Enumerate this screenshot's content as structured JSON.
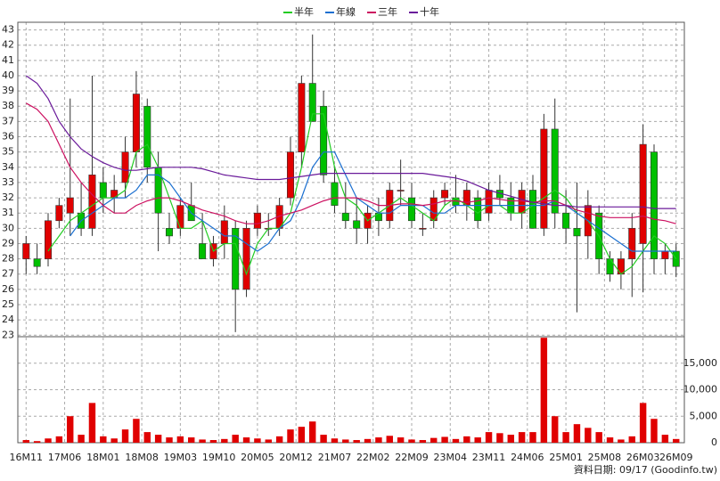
{
  "chart_data": {
    "type": "candlestick",
    "x": [
      0,
      2,
      4,
      6,
      8,
      10,
      12,
      14,
      16,
      18,
      20,
      22,
      24,
      26,
      28,
      30,
      32,
      34,
      36,
      38,
      40,
      42,
      44,
      46,
      48,
      50,
      52,
      54,
      56,
      58,
      60,
      62,
      64,
      66,
      68,
      70,
      72,
      74,
      76,
      78,
      80,
      82,
      84,
      86,
      88,
      90,
      92,
      94,
      96,
      98,
      100,
      102,
      104,
      106,
      108,
      110,
      112,
      114,
      116,
      118
    ],
    "open": [
      28,
      28,
      28,
      30.5,
      31,
      31,
      30,
      33,
      32,
      33,
      35,
      38,
      34,
      30,
      30,
      31.5,
      29,
      28,
      29,
      30,
      26,
      30,
      30,
      30,
      32,
      35,
      39.5,
      38,
      33,
      31,
      30.5,
      30,
      31,
      30.5,
      32.5,
      32,
      30,
      30.5,
      32,
      32,
      31.5,
      32,
      31,
      32.5,
      32,
      31,
      32.5,
      30,
      36.5,
      31,
      30,
      29.5,
      31,
      28,
      27,
      28,
      29,
      35,
      28,
      28.5
    ],
    "high": [
      29.5,
      29,
      31,
      32,
      38.5,
      33,
      40,
      34,
      33.5,
      36,
      40.3,
      38.5,
      35,
      31,
      32,
      33,
      31,
      29.5,
      31.5,
      30.5,
      30.5,
      31.5,
      31,
      32,
      36,
      40,
      42.7,
      39,
      34,
      33,
      32,
      31.5,
      32,
      33,
      34.5,
      33,
      31,
      32.5,
      33,
      33.5,
      33,
      32.5,
      33,
      33.5,
      33,
      33,
      33.5,
      37.5,
      38.5,
      32.5,
      33,
      32.5,
      31.5,
      28.5,
      28.5,
      31,
      36.8,
      35.5,
      29,
      29
    ],
    "low": [
      27,
      27,
      27.5,
      30,
      29.5,
      29.5,
      29.5,
      31,
      31,
      32,
      34,
      33,
      28.5,
      29,
      29.5,
      30.5,
      28,
      27.5,
      28,
      23.2,
      25.5,
      29.5,
      29.5,
      29.5,
      31.5,
      34,
      37,
      33,
      31,
      30,
      29,
      29,
      29.5,
      30,
      31.5,
      30,
      29.5,
      30,
      31.5,
      31,
      30.5,
      30,
      30.5,
      31.5,
      30.5,
      30,
      30,
      29.5,
      30,
      29,
      24.5,
      28,
      27,
      26.5,
      26,
      25.5,
      25.8,
      27,
      27,
      26.8
    ],
    "close": [
      29,
      27.5,
      30.5,
      31.5,
      32,
      30,
      33.5,
      32,
      32.5,
      35,
      38.8,
      34,
      31,
      29.5,
      31.5,
      30.5,
      28,
      29,
      30.5,
      26,
      30,
      31,
      30,
      31.5,
      35,
      39.5,
      37,
      33.5,
      31.5,
      30.5,
      30,
      31,
      30.5,
      32.5,
      32.5,
      30.5,
      30,
      32,
      32.5,
      31.5,
      32.5,
      30.5,
      32.5,
      32,
      31,
      32.5,
      30,
      36.5,
      31,
      30,
      29.5,
      31.5,
      28,
      27,
      28,
      30,
      35.5,
      28,
      28.5,
      27.5
    ],
    "volume": [
      500,
      300,
      800,
      1200,
      5000,
      1500,
      7500,
      1200,
      800,
      2500,
      4500,
      2000,
      1500,
      1000,
      1200,
      1000,
      600,
      500,
      700,
      1500,
      1000,
      800,
      600,
      1200,
      2500,
      3000,
      4000,
      1500,
      800,
      600,
      500,
      700,
      1000,
      1300,
      1000,
      600,
      500,
      900,
      1100,
      700,
      1200,
      1000,
      2000,
      1800,
      1500,
      2000,
      2000,
      19800,
      5000,
      2000,
      3500,
      2800,
      2000,
      1000,
      600,
      1200,
      7500,
      4500,
      1500,
      700
    ],
    "up_color": "#e00000",
    "down_color": "#00c000",
    "series": [
      {
        "name": "半年",
        "color": "#22cc22",
        "values": [
          null,
          null,
          28.5,
          29.5,
          30.5,
          31,
          31.5,
          32,
          32,
          32.5,
          35,
          35.5,
          34,
          32,
          30,
          30,
          30.5,
          28.5,
          29,
          29,
          27,
          29,
          30,
          30,
          31,
          34,
          37.5,
          37.5,
          34,
          32,
          31.5,
          30.5,
          31,
          31.5,
          32,
          31.5,
          31,
          30.5,
          31.5,
          32,
          31.5,
          31,
          31.5,
          31.5,
          31,
          31,
          31.5,
          32,
          32.5,
          32,
          31,
          30.5,
          29.5,
          28,
          27,
          27.5,
          28.5,
          29.5,
          29,
          28
        ]
      },
      {
        "name": "年線",
        "color": "#1a6fd0",
        "values": [
          null,
          null,
          null,
          null,
          29.5,
          30.5,
          31,
          31.5,
          32,
          32,
          32.5,
          33.5,
          33.5,
          33,
          32,
          31,
          30.5,
          30,
          29.5,
          29.5,
          29,
          28.5,
          29,
          30,
          30.5,
          32,
          34,
          35,
          35,
          33.5,
          32,
          31.5,
          31,
          31,
          31.5,
          31.5,
          31.5,
          31,
          31,
          31.5,
          31.5,
          31.5,
          31.5,
          31.5,
          31.5,
          31.5,
          31.5,
          31.5,
          31.8,
          31.5,
          31,
          30.5,
          30,
          29.5,
          29,
          28.5,
          28.5,
          28.5,
          28.5,
          28.5
        ]
      },
      {
        "name": "三年",
        "color": "#cc1060",
        "values": [
          38.2,
          37.8,
          37,
          35.5,
          34,
          33,
          32.2,
          31.5,
          31,
          31,
          31.5,
          31.8,
          32,
          32,
          31.8,
          31.5,
          31.2,
          31,
          30.8,
          30.5,
          30.3,
          30.3,
          30.5,
          30.8,
          31,
          31.2,
          31.5,
          31.8,
          32,
          32,
          32,
          31.8,
          31.5,
          31.5,
          31.6,
          31.6,
          31.5,
          31.6,
          31.8,
          31.8,
          31.7,
          31.8,
          32,
          31.9,
          31.8,
          31.8,
          31.7,
          31.8,
          31.8,
          31.5,
          31.2,
          31,
          30.8,
          30.7,
          30.7,
          30.7,
          30.8,
          30.6,
          30.5,
          30.3
        ]
      },
      {
        "name": "十年",
        "color": "#6a1a9a",
        "values": [
          40,
          39.5,
          38.5,
          37,
          36,
          35.2,
          34.7,
          34.3,
          34,
          33.8,
          33.8,
          33.9,
          34,
          34,
          34,
          34,
          33.9,
          33.7,
          33.5,
          33.4,
          33.3,
          33.2,
          33.2,
          33.2,
          33.3,
          33.4,
          33.5,
          33.6,
          33.6,
          33.6,
          33.6,
          33.6,
          33.6,
          33.6,
          33.6,
          33.6,
          33.6,
          33.5,
          33.4,
          33.3,
          33.1,
          32.8,
          32.5,
          32.3,
          32.1,
          31.9,
          31.7,
          31.6,
          31.5,
          31.5,
          31.4,
          31.4,
          31.4,
          31.4,
          31.4,
          31.4,
          31.4,
          31.3,
          31.3,
          31.3
        ]
      }
    ],
    "xlim": [
      -1.5,
      119.5
    ],
    "xticks": [
      {
        "value": 0,
        "label": "16M11"
      },
      {
        "value": 7,
        "label": "17M06"
      },
      {
        "value": 14,
        "label": "18M01"
      },
      {
        "value": 21,
        "label": "18M08"
      },
      {
        "value": 28,
        "label": "19M03"
      },
      {
        "value": 35,
        "label": "19M10"
      },
      {
        "value": 42,
        "label": "20M05"
      },
      {
        "value": 49,
        "label": "20M12"
      },
      {
        "value": 56,
        "label": "21M07"
      },
      {
        "value": 63,
        "label": "22M02"
      },
      {
        "value": 70,
        "label": "22M09"
      },
      {
        "value": 77,
        "label": "23M04"
      },
      {
        "value": 84,
        "label": "23M11"
      },
      {
        "value": 91,
        "label": "24M06"
      },
      {
        "value": 98,
        "label": "25M01"
      },
      {
        "value": 105,
        "label": "25M08"
      },
      {
        "value": 112,
        "label": "26M03"
      },
      {
        "value": 118,
        "label": "26M09"
      }
    ],
    "ylim": [
      22.9,
      43.5
    ],
    "yticks": [
      23,
      24,
      25,
      26,
      27,
      28,
      29,
      30,
      31,
      32,
      33,
      34,
      35,
      36,
      37,
      38,
      39,
      40,
      41,
      42,
      43
    ],
    "y2lim": [
      0,
      20000
    ],
    "y2ticks": [
      0,
      {
        "value": 5000,
        "label": "5,000"
      },
      {
        "value": 10000,
        "label": "10,000"
      },
      {
        "value": 15000,
        "label": "15,000"
      }
    ],
    "grid": true,
    "legend": "top",
    "footer": "資料日期: 09/17 (Goodinfo.tw)"
  }
}
